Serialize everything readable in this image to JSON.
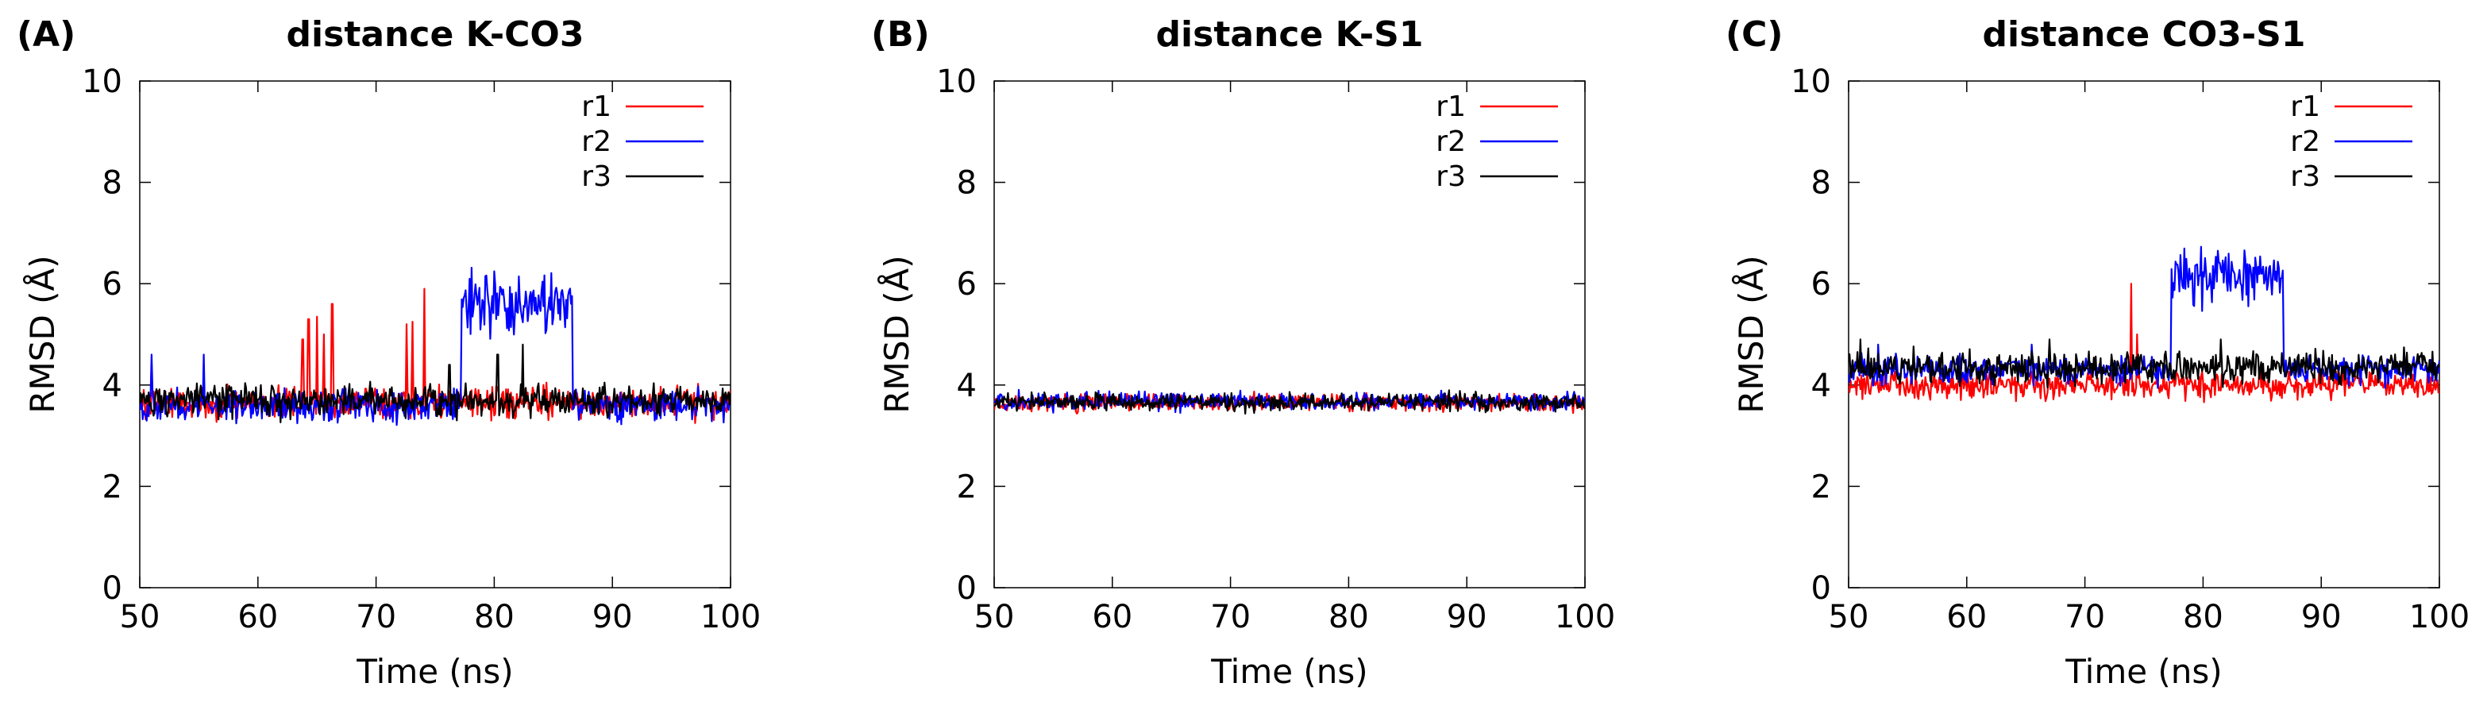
{
  "chart_data": [
    {
      "panel": "(A)",
      "type": "line",
      "title": "distance K-CO3",
      "xlabel": "Time (ns)",
      "ylabel": "RMSD (Å)",
      "xlim": [
        50,
        100
      ],
      "ylim": [
        0,
        10
      ],
      "xticks": [
        "50",
        "60",
        "70",
        "80",
        "90",
        "100"
      ],
      "yticks": [
        "0",
        "2",
        "4",
        "6",
        "8",
        "10"
      ],
      "legend_position": "top-right",
      "series": [
        {
          "name": "r1",
          "color": "#ff0000",
          "base": 3.65,
          "noise": 0.22,
          "segments": [],
          "spikes": [
            [
              63.8,
              4.9
            ],
            [
              64.3,
              5.3
            ],
            [
              65.0,
              5.35
            ],
            [
              65.6,
              5.0
            ],
            [
              66.3,
              5.6
            ],
            [
              72.6,
              5.2
            ],
            [
              73.1,
              5.25
            ],
            [
              74.1,
              5.9
            ]
          ]
        },
        {
          "name": "r2",
          "color": "#0000ff",
          "base": 3.6,
          "noise": 0.22,
          "segments": [
            [
              77.2,
              86.6,
              5.6,
              0.45
            ]
          ],
          "spikes": [
            [
              51.0,
              4.6
            ],
            [
              55.4,
              4.6
            ]
          ]
        },
        {
          "name": "r3",
          "color": "#000000",
          "base": 3.7,
          "noise": 0.22,
          "segments": [],
          "spikes": [
            [
              76.2,
              4.4
            ],
            [
              80.3,
              4.6
            ],
            [
              82.4,
              4.8
            ]
          ]
        }
      ]
    },
    {
      "panel": "(B)",
      "type": "line",
      "title": "distance K-S1",
      "xlabel": "Time (ns)",
      "ylabel": "RMSD (Å)",
      "xlim": [
        50,
        100
      ],
      "ylim": [
        0,
        10
      ],
      "xticks": [
        "50",
        "60",
        "70",
        "80",
        "90",
        "100"
      ],
      "yticks": [
        "0",
        "2",
        "4",
        "6",
        "8",
        "10"
      ],
      "legend_position": "top-right",
      "series": [
        {
          "name": "r1",
          "color": "#ff0000",
          "base": 3.65,
          "noise": 0.12,
          "segments": [],
          "spikes": []
        },
        {
          "name": "r2",
          "color": "#0000ff",
          "base": 3.68,
          "noise": 0.12,
          "segments": [],
          "spikes": []
        },
        {
          "name": "r3",
          "color": "#000000",
          "base": 3.66,
          "noise": 0.12,
          "segments": [],
          "spikes": []
        }
      ]
    },
    {
      "panel": "(C)",
      "type": "line",
      "title": "distance CO3-S1",
      "xlabel": "Time (ns)",
      "ylabel": "RMSD (Å)",
      "xlim": [
        50,
        100
      ],
      "ylim": [
        0,
        10
      ],
      "xticks": [
        "50",
        "60",
        "70",
        "80",
        "90",
        "100"
      ],
      "yticks": [
        "0",
        "2",
        "4",
        "6",
        "8",
        "10"
      ],
      "legend_position": "top-right",
      "series": [
        {
          "name": "r1",
          "color": "#ff0000",
          "base": 4.0,
          "noise": 0.18,
          "segments": [],
          "spikes": [
            [
              73.9,
              6.0
            ],
            [
              74.4,
              5.0
            ]
          ]
        },
        {
          "name": "r2",
          "color": "#0000ff",
          "base": 4.3,
          "noise": 0.2,
          "segments": [
            [
              77.3,
              86.8,
              6.15,
              0.45
            ]
          ],
          "spikes": [
            [
              52.5,
              4.8
            ],
            [
              65.5,
              4.8
            ]
          ]
        },
        {
          "name": "r3",
          "color": "#000000",
          "base": 4.35,
          "noise": 0.22,
          "segments": [],
          "spikes": [
            [
              51.0,
              4.9
            ],
            [
              67.0,
              4.9
            ],
            [
              81.5,
              4.9
            ]
          ]
        }
      ]
    }
  ]
}
